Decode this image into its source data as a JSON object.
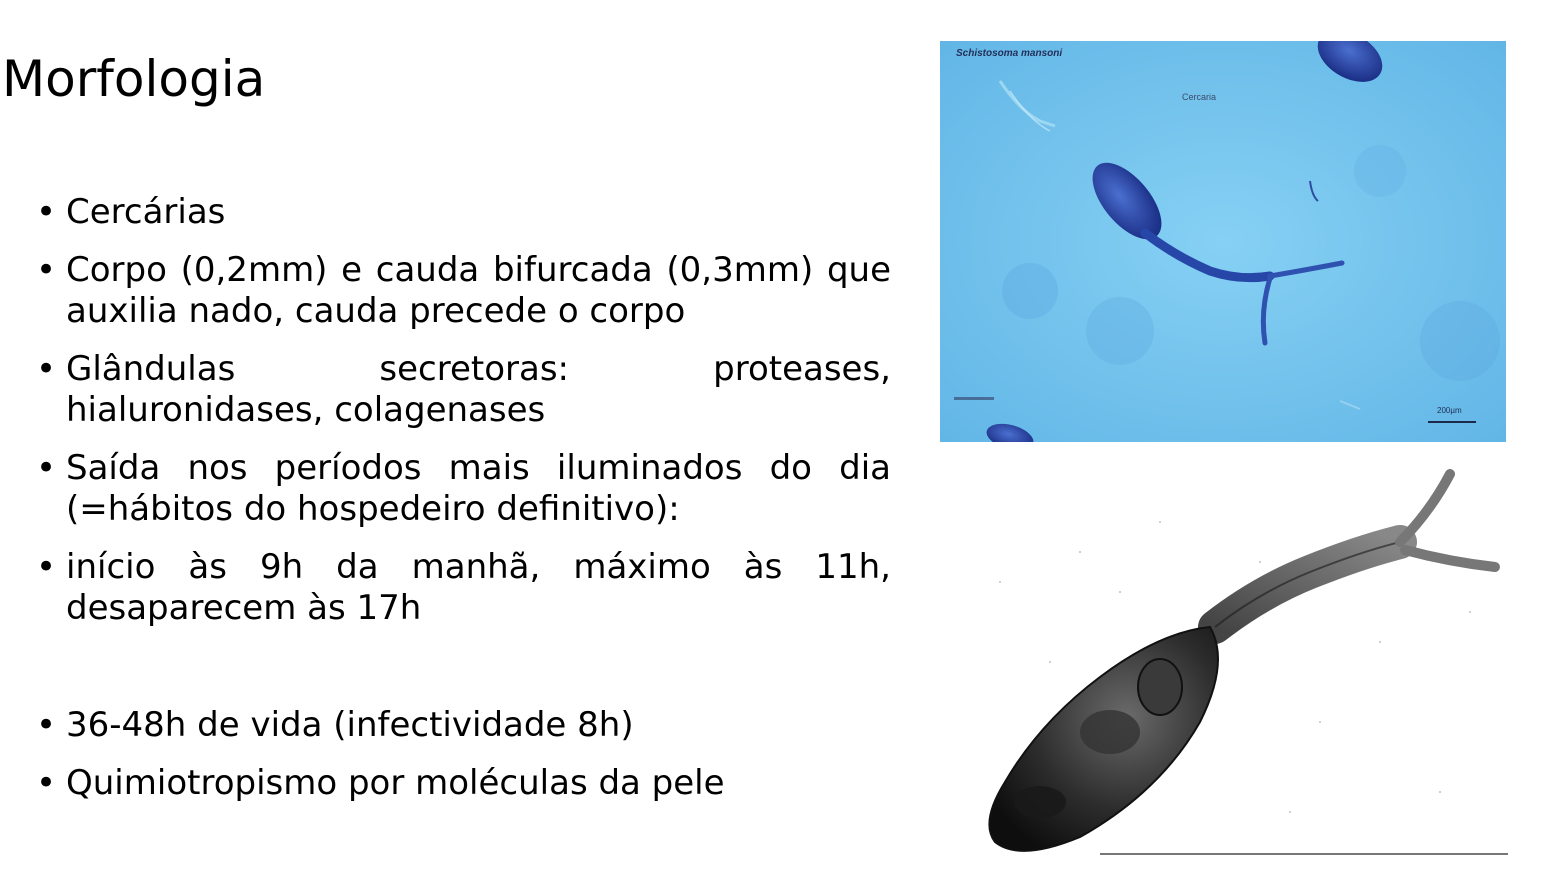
{
  "slide": {
    "title": "Morfologia",
    "bullets": [
      "Cercárias",
      "Corpo (0,2mm) e cauda bifurcada (0,3mm) que auxilia nado, cauda precede o corpo",
      "Glândulas secretoras: proteases, hialuronidases, colagenases",
      "Saída nos períodos mais iluminados do dia (=hábitos do hospedeiro definitivo):",
      "início às 9h da manhã, máximo às 11h, desaparecem às 17h",
      "36-48h de vida (infectividade 8h)",
      "Quimiotropismo por moléculas da pele"
    ]
  },
  "images": {
    "micrograph": {
      "caption": "Schistosoma mansoni",
      "label": "Cercaria",
      "scale": "200µm",
      "background_color": "#73c4ee",
      "organism_color": "#1f3f9a"
    },
    "drawing": {
      "style": "black-and-white illustration of a cercaria"
    }
  }
}
